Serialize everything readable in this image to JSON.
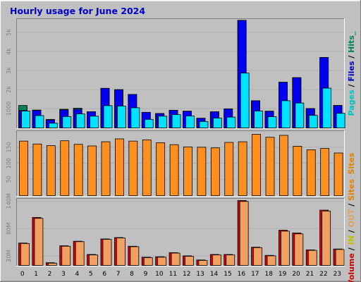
{
  "chart_data": {
    "type": "bar",
    "title": "Hourly usage for June 2024",
    "categories": [
      "0",
      "1",
      "2",
      "3",
      "4",
      "5",
      "6",
      "7",
      "8",
      "9",
      "10",
      "11",
      "12",
      "13",
      "14",
      "15",
      "16",
      "17",
      "18",
      "19",
      "20",
      "21",
      "22",
      "23"
    ],
    "panels": [
      {
        "id": "hits",
        "ylim": [
          0,
          5700
        ],
        "yticks": [
          {
            "value": 1000,
            "label": "1000"
          },
          {
            "value": 2000,
            "label": "2k"
          },
          {
            "value": 3000,
            "label": "3k"
          },
          {
            "value": 4000,
            "label": "4k"
          },
          {
            "value": 5000,
            "label": "5k"
          }
        ],
        "right_label": [
          {
            "text": "Pages",
            "color": "#00c0c0"
          },
          {
            "text": " / ",
            "color": "#000000"
          },
          {
            "text": "Files",
            "color": "#0000c0"
          },
          {
            "text": " / ",
            "color": "#000000"
          },
          {
            "text": "Hits_",
            "color": "#008060"
          }
        ],
        "series": [
          {
            "color": "#008060",
            "values": [
              1180,
              940,
              450,
              980,
              1040,
              850,
              2080,
              2010,
              1760,
              820,
              760,
              930,
              880,
              510,
              850,
              1000,
              5650,
              1430,
              880,
              2400,
              2640,
              1020,
              3700,
              1180
            ]
          },
          {
            "color": "#0000ee",
            "values": [
              920,
              920,
              420,
              950,
              980,
              850,
              2080,
              2010,
              1760,
              820,
              760,
              930,
              880,
              510,
              850,
              1000,
              5650,
              1430,
              880,
              2400,
              2640,
              1020,
              3700,
              1180
            ]
          },
          {
            "color": "#00e0ff",
            "values": [
              890,
              650,
              250,
              600,
              740,
              620,
              1170,
              1150,
              1060,
              450,
              620,
              700,
              630,
              340,
              520,
              570,
              2880,
              890,
              590,
              1430,
              1310,
              660,
              2090,
              770
            ]
          }
        ]
      },
      {
        "id": "visits",
        "ylim": [
          0,
          200
        ],
        "yticks": [
          {
            "value": 50,
            "label": "50"
          },
          {
            "value": 100,
            "label": "100"
          },
          {
            "value": 150,
            "label": "150"
          }
        ],
        "right_label": [
          {
            "text": "Sites",
            "color": "#e08000"
          }
        ],
        "series": [
          {
            "color": "#ff9020",
            "values": [
              170,
              161,
              156,
              171,
              160,
              155,
              168,
              177,
              170,
              174,
              165,
              159,
              152,
              151,
              149,
              166,
              168,
              191,
              182,
              188,
              154,
              143,
              147,
              133
            ]
          }
        ]
      },
      {
        "id": "volume",
        "ylim": [
          0,
          145
        ],
        "yticks": [
          {
            "value": 20,
            "label": "20M"
          },
          {
            "value": 80,
            "label": "80M"
          },
          {
            "value": 140,
            "label": "140M"
          }
        ],
        "right_label": [
          {
            "text": "Volume",
            "color": "#cc0000"
          },
          {
            "text": " / ",
            "color": "#000000"
          },
          {
            "text": "IN",
            "color": "#c0c000"
          },
          {
            "text": " / ",
            "color": "#000000"
          },
          {
            "text": "OUT",
            "color": "#e0a060"
          },
          {
            "text": " / ",
            "color": "#000000"
          },
          {
            "text": "Sites",
            "color": "#e08000"
          }
        ],
        "series": [
          {
            "color": "#dd0000",
            "values": [
              49,
              105,
              6,
              43,
              53,
              24,
              58,
              61,
              42,
              18,
              19,
              28,
              21,
              12,
              24,
              24,
              142,
              40,
              22,
              77,
              71,
              34,
              121,
              36
            ]
          },
          {
            "color": "#f0a060",
            "values": [
              48,
              103,
              5,
              42,
              52,
              23,
              57,
              60,
              41,
              17,
              18,
              27,
              20,
              11,
              23,
              23,
              140,
              39,
              21,
              75,
              69,
              33,
              119,
              35
            ]
          }
        ]
      }
    ]
  }
}
